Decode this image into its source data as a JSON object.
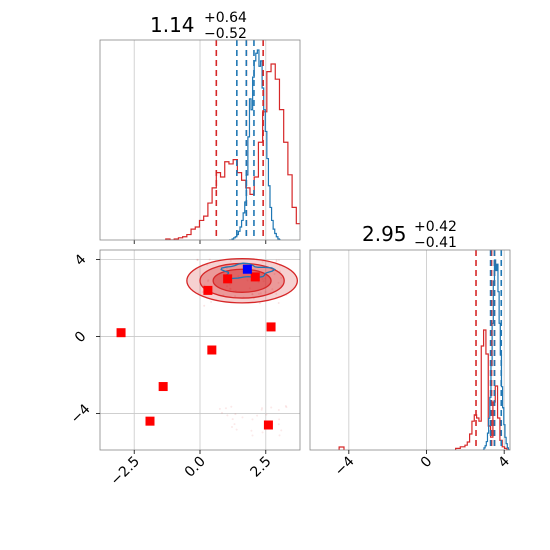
{
  "colors": {
    "primary": "#d62728",
    "secondary": "#1f77b4",
    "marker": "#ff0000",
    "marker_alt": "#0000ff",
    "grid": "#c8c8c8"
  },
  "chart_data": {
    "type": "corner",
    "params": [
      {
        "median": "1.14",
        "err_plus": "+0.64",
        "err_minus": "−0.52"
      },
      {
        "median": "2.95",
        "err_plus": "+0.42",
        "err_minus": "−0.41"
      }
    ],
    "hist_x": {
      "xlim": [
        -3.8,
        3.8
      ],
      "grid": [
        -2.5,
        0.0,
        2.5
      ],
      "red_quantiles": [
        0.62,
        1.76,
        2.4
      ],
      "blue_quantiles": [
        1.4,
        1.76,
        2.05
      ],
      "red_hist": {
        "bin_start": -1.3,
        "bin_width": 0.16,
        "counts": [
          1,
          0,
          1,
          2,
          3,
          5,
          10,
          12,
          18,
          22,
          34,
          48,
          62,
          58,
          72,
          70,
          74,
          62,
          55,
          48,
          42,
          58,
          90,
          118,
          155,
          162,
          148,
          120,
          90,
          60,
          30,
          15,
          8,
          3,
          2,
          1,
          1,
          0,
          0,
          0
        ]
      },
      "blue_hist": {
        "bin_start": 1.1,
        "bin_width": 0.06,
        "counts": [
          0,
          0,
          1,
          2,
          3,
          5,
          8,
          12,
          18,
          25,
          35,
          60,
          95,
          130,
          120,
          150,
          165,
          172,
          175,
          160,
          165,
          140,
          120,
          100,
          75,
          50,
          30,
          18,
          10,
          6,
          3,
          1,
          0
        ]
      }
    },
    "scatter": {
      "xlim": [
        -3.8,
        3.8
      ],
      "ylim": [
        -5.9,
        4.5
      ],
      "xticks": [
        "−2.5",
        "0.0",
        "2.5"
      ],
      "xtick_values": [
        -2.5,
        0.0,
        2.5
      ],
      "yticks": [
        "−4",
        "0",
        "4"
      ],
      "ytick_values": [
        -4,
        0,
        4
      ],
      "red_points": [
        {
          "x": -3.0,
          "y": 0.2
        },
        {
          "x": -1.9,
          "y": -4.4
        },
        {
          "x": -1.4,
          "y": -2.6
        },
        {
          "x": 0.3,
          "y": 2.4
        },
        {
          "x": 0.45,
          "y": -0.7
        },
        {
          "x": 1.05,
          "y": 3.0
        },
        {
          "x": 2.1,
          "y": 3.1
        },
        {
          "x": 2.7,
          "y": 0.5
        },
        {
          "x": 2.6,
          "y": -4.6
        }
      ],
      "blue_points": [
        {
          "x": 1.8,
          "y": 3.5
        }
      ],
      "contours": {
        "center": [
          1.6,
          2.9
        ],
        "radii": [
          [
            2.1,
            1.15
          ],
          [
            1.6,
            0.9
          ],
          [
            1.1,
            0.6
          ]
        ]
      }
    },
    "hist_y": {
      "xlim": [
        -6.0,
        4.3
      ],
      "grid": [
        -4,
        0,
        4
      ],
      "xticks": [
        "−4",
        "0",
        "4"
      ],
      "xtick_values": [
        -4,
        0,
        4
      ],
      "red_quantiles": [
        2.55,
        3.35,
        3.5
      ],
      "blue_quantiles": [
        3.3,
        3.5,
        3.85
      ],
      "red_hist": {
        "bin_start": 1.5,
        "bin_width": 0.12,
        "counts": [
          1,
          1,
          2,
          2,
          3,
          5,
          10,
          18,
          22,
          20,
          18,
          65,
          75,
          60,
          15,
          8,
          30,
          40,
          20,
          6,
          2,
          1,
          0,
          0
        ]
      },
      "blue_hist": {
        "bin_start": 2.9,
        "bin_width": 0.06,
        "counts": [
          0,
          1,
          2,
          4,
          8,
          15,
          25,
          40,
          60,
          80,
          90,
          85,
          88,
          75,
          60,
          45,
          30,
          20,
          12,
          6,
          3,
          1,
          0
        ]
      },
      "outlier_bins": [
        {
          "x": -4.5,
          "w": 0.25,
          "count": 2
        }
      ]
    }
  }
}
